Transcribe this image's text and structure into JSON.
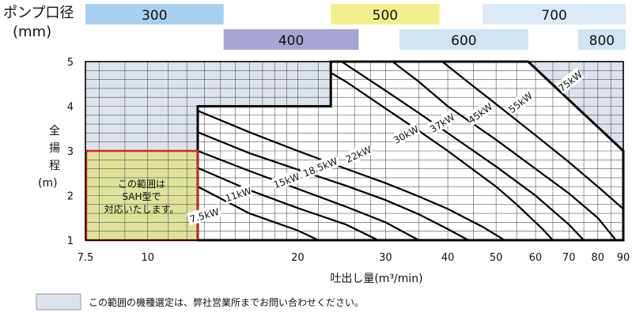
{
  "chart_data": {
    "type": "line",
    "pump_label": {
      "line1": "ポンプ口径",
      "line2": "(mm)"
    },
    "pump_bands": [
      {
        "label": "300",
        "from": 7.5,
        "to": 14.2,
        "color": "#a9d0ee"
      },
      {
        "label": "400",
        "from": 14.2,
        "to": 26.5,
        "color": "#a7a5d6"
      },
      {
        "label": "500",
        "from": 23.3,
        "to": 38.5,
        "color": "#f3f08c"
      },
      {
        "label": "600",
        "from": 32.0,
        "to": 58.0,
        "color": "#cfe5f5"
      },
      {
        "label": "700",
        "from": 47.0,
        "to": 91.0,
        "color": "#dbeaf6"
      },
      {
        "label": "800",
        "from": 73.0,
        "to": 91.0,
        "color": "#cfe5f5"
      }
    ],
    "ylabel": [
      "全",
      "揚",
      "程",
      "(m)"
    ],
    "xlabel": "吐出し量(m³/min)",
    "xscale": "log",
    "xlim": [
      7.5,
      90
    ],
    "ylim": [
      1,
      5
    ],
    "x_ticks": [
      "7.5",
      "10",
      "20",
      "30",
      "40",
      "50",
      "60",
      "70",
      "80",
      "90"
    ],
    "y_ticks": [
      "1",
      "2",
      "3",
      "4",
      "5"
    ],
    "series": [
      {
        "name": "7.5kW",
        "points": [
          [
            12.6,
            2.2
          ],
          [
            16,
            1.6
          ],
          [
            20,
            1.22
          ],
          [
            22,
            1.0
          ]
        ]
      },
      {
        "name": "11kW",
        "points": [
          [
            12.6,
            2.62
          ],
          [
            16,
            2.12
          ],
          [
            20,
            1.72
          ],
          [
            25,
            1.35
          ],
          [
            29,
            1.0
          ]
        ]
      },
      {
        "name": "15kW",
        "points": [
          [
            12.6,
            3.0
          ],
          [
            16,
            2.55
          ],
          [
            20,
            2.15
          ],
          [
            25,
            1.75
          ],
          [
            30,
            1.4
          ],
          [
            35,
            1.0
          ]
        ]
      },
      {
        "name": "18.5kW",
        "points": [
          [
            12.6,
            3.42
          ],
          [
            16,
            2.95
          ],
          [
            20,
            2.58
          ],
          [
            25,
            2.22
          ],
          [
            30,
            1.9
          ],
          [
            35,
            1.58
          ],
          [
            40,
            1.25
          ],
          [
            44,
            1.0
          ]
        ]
      },
      {
        "name": "22kW",
        "points": [
          [
            12.6,
            3.9
          ],
          [
            16,
            3.42
          ],
          [
            20,
            3.0
          ],
          [
            25,
            2.6
          ],
          [
            30,
            2.28
          ],
          [
            35,
            1.98
          ],
          [
            40,
            1.7
          ],
          [
            47,
            1.3
          ],
          [
            52,
            1.0
          ]
        ]
      },
      {
        "name": "30kW",
        "points": [
          [
            23.3,
            4.75
          ],
          [
            25,
            4.55
          ],
          [
            30,
            3.95
          ],
          [
            35,
            3.45
          ],
          [
            40,
            3.0
          ],
          [
            50,
            2.2
          ],
          [
            55,
            1.8
          ],
          [
            62,
            1.25
          ],
          [
            65,
            1.0
          ]
        ]
      },
      {
        "name": "37kW",
        "points": [
          [
            24.5,
            5.0
          ],
          [
            30,
            4.35
          ],
          [
            35,
            3.85
          ],
          [
            40,
            3.4
          ],
          [
            50,
            2.65
          ],
          [
            60,
            2.0
          ],
          [
            70,
            1.35
          ],
          [
            75,
            1.0
          ]
        ]
      },
      {
        "name": "45kW",
        "points": [
          [
            31,
            5.0
          ],
          [
            35,
            4.55
          ],
          [
            40,
            4.0
          ],
          [
            50,
            3.25
          ],
          [
            60,
            2.6
          ],
          [
            70,
            2.05
          ],
          [
            80,
            1.5
          ],
          [
            87,
            1.0
          ]
        ]
      },
      {
        "name": "55kW",
        "points": [
          [
            39,
            5.0
          ],
          [
            45,
            4.45
          ],
          [
            50,
            4.05
          ],
          [
            60,
            3.35
          ],
          [
            70,
            2.75
          ],
          [
            80,
            2.2
          ],
          [
            90,
            1.7
          ]
        ]
      },
      {
        "name": "75kW",
        "points": [
          [
            58,
            5.0
          ],
          [
            65,
            4.55
          ],
          [
            70,
            4.2
          ],
          [
            80,
            3.6
          ],
          [
            90,
            3.0
          ]
        ]
      }
    ],
    "series_labels": [
      {
        "name": "7.5kW",
        "x": 13.0,
        "y": 1.55,
        "angle": -16
      },
      {
        "name": "11kW",
        "x": 15.2,
        "y": 2.02,
        "angle": -18
      },
      {
        "name": "15kW",
        "x": 19.0,
        "y": 2.33,
        "angle": -20
      },
      {
        "name": "18.5kW",
        "x": 22.2,
        "y": 2.63,
        "angle": -22
      },
      {
        "name": "22kW",
        "x": 26.5,
        "y": 2.92,
        "angle": -24
      },
      {
        "name": "30kW",
        "x": 33.0,
        "y": 3.36,
        "angle": -28
      },
      {
        "name": "37kW",
        "x": 39.0,
        "y": 3.62,
        "angle": -32
      },
      {
        "name": "45kW",
        "x": 46.5,
        "y": 3.84,
        "angle": -36
      },
      {
        "name": "55kW",
        "x": 56.0,
        "y": 4.08,
        "angle": -38
      },
      {
        "name": "75kW",
        "x": 70.5,
        "y": 4.56,
        "angle": -38
      }
    ],
    "envelope": [
      [
        12.6,
        1
      ],
      [
        12.6,
        4
      ],
      [
        23.3,
        4
      ],
      [
        23.3,
        5
      ],
      [
        58,
        5
      ],
      [
        90,
        3
      ],
      [
        90,
        1
      ]
    ],
    "sah_box": {
      "x": [
        7.5,
        12.6
      ],
      "y": [
        1,
        3
      ],
      "text": [
        "この範囲は",
        "SAH型で",
        "対応いたします。"
      ],
      "fill": "#dfe39a",
      "border": "#d8251f"
    },
    "legend": {
      "text": "この範囲の機種選定は、弊社営業所までお問い合わせください。",
      "swatch_color": "#dde3ec"
    },
    "grid": true,
    "colors": {
      "consult_area": "#dde3ec"
    }
  }
}
